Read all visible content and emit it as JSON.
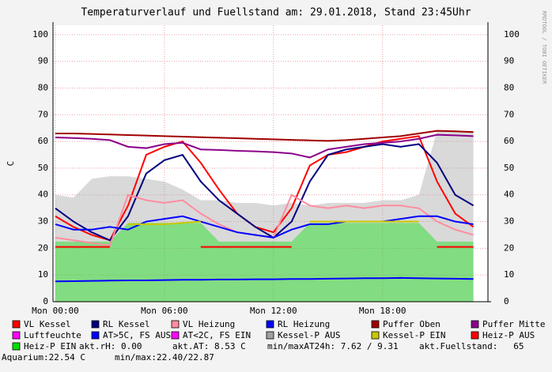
{
  "chart_data": {
    "type": "line",
    "title": "Temperaturverlauf und Fuellstand am: 29.01.2018, Stand 23:45Uhr",
    "y_label": "C",
    "side_text": "RRDTOOL / TOBI OETIKER",
    "x": [
      0,
      1,
      2,
      3,
      4,
      5,
      6,
      7,
      8,
      9,
      10,
      11,
      12,
      13,
      14,
      15,
      16,
      17,
      18,
      19,
      20,
      21,
      22,
      23
    ],
    "xlim": [
      -0.13,
      23.8
    ],
    "xticks": [
      {
        "value": 0,
        "label": "Mon 00:00"
      },
      {
        "value": 6,
        "label": "Mon 06:00"
      },
      {
        "value": 12,
        "label": "Mon 12:00"
      },
      {
        "value": 18,
        "label": "Mon 18:00"
      }
    ],
    "ylim": [
      0,
      103.5
    ],
    "yticks": [
      0,
      10,
      20,
      30,
      40,
      50,
      60,
      70,
      80,
      90,
      100
    ],
    "grid": true,
    "series": [
      {
        "name": "VL Kessel",
        "color": "#ff0000",
        "values": [
          32,
          28,
          25,
          23,
          36,
          55,
          58,
          60,
          52,
          42,
          33,
          28,
          26,
          35,
          51,
          55,
          56,
          58,
          60,
          61,
          62,
          45,
          33,
          28
        ]
      },
      {
        "name": "RL Kessel",
        "color": "#000080",
        "values": [
          35,
          30,
          26,
          23,
          32,
          48,
          53,
          55,
          45,
          38,
          33,
          28,
          24,
          30,
          45,
          55,
          57,
          58,
          59,
          58,
          59,
          52,
          40,
          36
        ]
      },
      {
        "name": "VL Heizung",
        "color": "#ff8ca0",
        "values": [
          24,
          23,
          22,
          21,
          40,
          38,
          37,
          38,
          33,
          29,
          26,
          25,
          24,
          40,
          36,
          35,
          36,
          35,
          36,
          36,
          35,
          30,
          27,
          25
        ]
      },
      {
        "name": "RL Heizung",
        "color": "#0000ff",
        "values": [
          29,
          27,
          27,
          28,
          27,
          30,
          31,
          32,
          30,
          28,
          26,
          25,
          24,
          27,
          29,
          29,
          30,
          30,
          30,
          31,
          32,
          32,
          30,
          29
        ]
      },
      {
        "name": "Puffer Oben",
        "color": "#a00000",
        "values": [
          63,
          63,
          62.8,
          62.6,
          62.4,
          62.2,
          62,
          61.8,
          61.6,
          61.4,
          61.2,
          61,
          60.8,
          60.6,
          60.4,
          60.2,
          60.5,
          61,
          61.5,
          62,
          63,
          64,
          63.8,
          63.5
        ]
      },
      {
        "name": "Puffer Mitte",
        "color": "#8b008b",
        "values": [
          61.5,
          61.3,
          61,
          60.5,
          58,
          57.5,
          59,
          59.5,
          57,
          56.8,
          56.5,
          56.3,
          56,
          55.5,
          54,
          57,
          58,
          59,
          59.5,
          60,
          61,
          62.5,
          62.3,
          62
        ]
      },
      {
        "name": "Luftfeuchte",
        "color": "#ff00ff",
        "values": [
          null,
          null,
          null,
          null,
          null,
          null,
          null,
          null,
          null,
          null,
          null,
          null,
          null,
          null,
          null,
          null,
          null,
          null,
          null,
          null,
          null,
          null,
          null,
          null
        ]
      },
      {
        "name": "AT>5C, FS AUS",
        "color": "#0000ff",
        "values": [
          7.6,
          7.7,
          7.8,
          7.9,
          8,
          8,
          8.1,
          8.2,
          8.2,
          8.3,
          8.3,
          8.4,
          8.4,
          8.5,
          8.5,
          8.6,
          8.7,
          8.8,
          8.8,
          8.9,
          8.8,
          8.7,
          8.6,
          8.5
        ]
      },
      {
        "name": "AT<2C, FS EIN",
        "color": "#ff00ff",
        "values": [
          null,
          null,
          null,
          null,
          null,
          null,
          null,
          null,
          null,
          null,
          null,
          null,
          null,
          null,
          null,
          null,
          null,
          null,
          null,
          null,
          null,
          null,
          null,
          null
        ]
      },
      {
        "name": "Kessel-P AUS",
        "color": "#a0a0a0",
        "fill": true,
        "values": [
          40,
          39,
          46,
          47,
          47,
          46,
          45,
          42,
          38,
          38,
          37,
          37,
          36,
          37,
          36,
          37,
          37,
          37,
          38,
          38,
          40,
          64,
          64,
          64
        ]
      },
      {
        "name": "Kessel-P EIN",
        "color": "#c8c800",
        "values": [
          null,
          null,
          null,
          null,
          29,
          29,
          29,
          29.5,
          30,
          null,
          null,
          null,
          null,
          null,
          30,
          30,
          30,
          30,
          30,
          30,
          30,
          null,
          null,
          null
        ]
      },
      {
        "name": "Heiz-P AUS",
        "color": "#ff0000",
        "values": [
          20.5,
          20.5,
          20.5,
          20.5,
          null,
          null,
          null,
          null,
          20.5,
          20.5,
          20.5,
          20.5,
          20.5,
          20.5,
          null,
          null,
          null,
          null,
          null,
          null,
          null,
          20.5,
          20.5,
          20.5
        ]
      },
      {
        "name": "Heiz-P EIN",
        "color": "#00e000",
        "fill": true,
        "values": [
          22.5,
          22.5,
          22.5,
          22.5,
          29.5,
          29.5,
          29.5,
          29.5,
          29.5,
          22.5,
          22.5,
          22.5,
          22.5,
          22.5,
          29.5,
          29.5,
          29.5,
          29.5,
          29.5,
          29.5,
          29.5,
          22.5,
          22.5,
          22.5
        ]
      }
    ],
    "annotations": [
      "akt.rH: 0.00",
      "akt.AT: 8.53 C",
      "min/maxAT24h: 7.62 / 9.31",
      "akt.Fuellstand:   65",
      "Aquarium:22.54 C",
      "min/max:22.40/22.87"
    ]
  }
}
